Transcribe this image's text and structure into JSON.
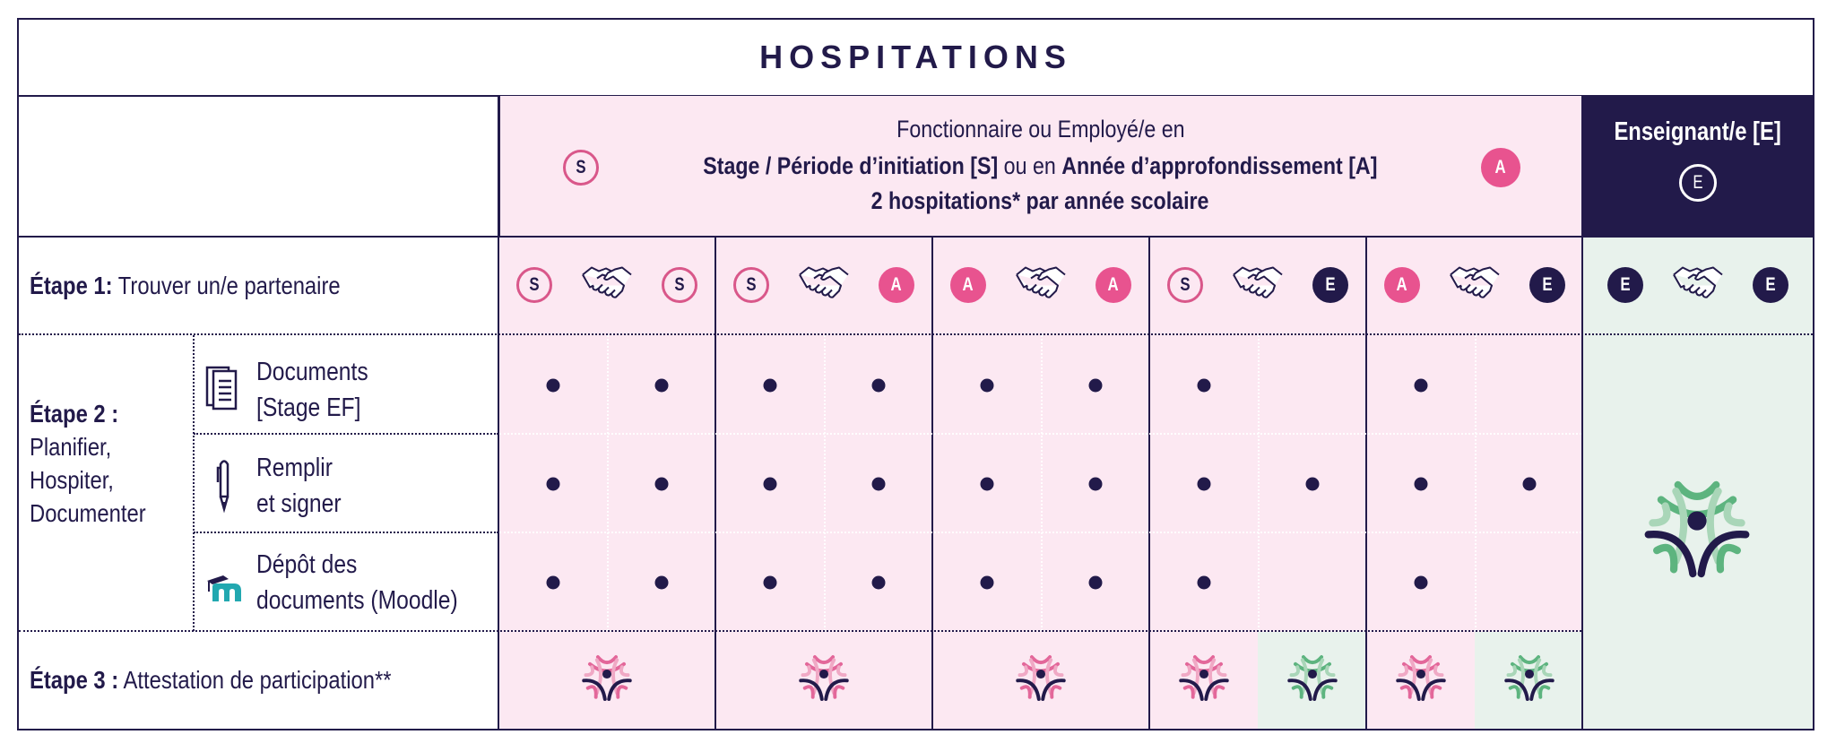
{
  "title": "HOSPITATIONS",
  "header": {
    "line1": "Fonctionnaire ou Employé/e en",
    "line2_bold_a": "Stage / Période d’initiation [S]",
    "line2_mid": " ou en ",
    "line2_bold_b": "Année d’approfondissement [A]",
    "line3": "2 hospitations* par année scolaire",
    "badge_left": "S",
    "badge_right": "A",
    "teacher_label": "Enseignant/e [E]",
    "teacher_badge": "E"
  },
  "steps": {
    "step1": {
      "label_bold": "Étape 1:",
      "label": " Trouver un/e partenaire"
    },
    "step2": {
      "label_bold": "Étape 2 :",
      "lines": [
        "Planifier,",
        "Hospiter,",
        "Documenter"
      ]
    },
    "step3": {
      "label_bold": "Étape 3 :",
      "label": " Attestation de participation**"
    }
  },
  "substeps": [
    {
      "icon": "documents-icon",
      "line1": "Documents",
      "line2": "[Stage EF]"
    },
    {
      "icon": "pen-icon",
      "line1": "Remplir",
      "line2": "et signer"
    },
    {
      "icon": "moodle-icon",
      "line1": "Dépôt des",
      "line2": "documents (Moodle)"
    }
  ],
  "pairings": [
    {
      "left": "S",
      "right": "S"
    },
    {
      "left": "S",
      "right": "A"
    },
    {
      "left": "A",
      "right": "A"
    },
    {
      "left": "S",
      "right": "E"
    },
    {
      "left": "A",
      "right": "E"
    },
    {
      "left": "E",
      "right": "E"
    }
  ],
  "dots_matrix": [
    [
      [
        true,
        true
      ],
      [
        true,
        true
      ],
      [
        true,
        true
      ],
      [
        true,
        false
      ],
      [
        true,
        false
      ]
    ],
    [
      [
        true,
        true
      ],
      [
        true,
        true
      ],
      [
        true,
        true
      ],
      [
        true,
        true
      ],
      [
        true,
        true
      ]
    ],
    [
      [
        true,
        true
      ],
      [
        true,
        true
      ],
      [
        true,
        true
      ],
      [
        true,
        false
      ],
      [
        true,
        false
      ]
    ]
  ],
  "attestations": [
    {
      "type": "single",
      "colors": [
        "pink"
      ]
    },
    {
      "type": "single",
      "colors": [
        "pink"
      ]
    },
    {
      "type": "single",
      "colors": [
        "pink"
      ]
    },
    {
      "type": "split",
      "colors": [
        "pink",
        "green"
      ]
    },
    {
      "type": "split",
      "colors": [
        "pink",
        "green"
      ]
    }
  ],
  "colors": {
    "navy": "#221A4A",
    "pink_bg": "#FCE8F2",
    "green_bg": "#E8F2EC",
    "pink_accent": "#E8538F",
    "pink_ring": "#D9578A",
    "green_accent": "#5DB47F"
  }
}
